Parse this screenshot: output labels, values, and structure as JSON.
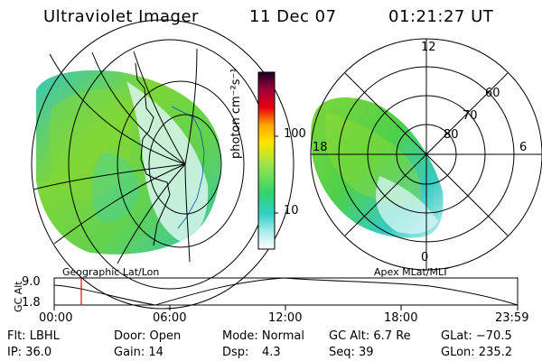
{
  "header": {
    "instrument": "Ultraviolet Imager",
    "date": "11 Dec 07",
    "time": "01:21:27 UT"
  },
  "geo_panel": {
    "label": "Geographic Lat/Lon"
  },
  "apex_panel": {
    "label": "Apex MLat/MLT",
    "mlt_labels": [
      "12",
      "18",
      "6",
      "0"
    ],
    "lat_labels": [
      "60",
      "70",
      "80"
    ]
  },
  "colorbar": {
    "unit_label": "photon cm⁻²s⁻¹",
    "ticks": [
      "100",
      "10"
    ]
  },
  "altitude_plot": {
    "ylabel": "GC Alt",
    "y_ticks": [
      "9.0",
      "1.8"
    ],
    "x_ticks": [
      "00:00",
      "06:00",
      "12:00",
      "18:00",
      "23:59"
    ]
  },
  "status": {
    "flt": "Flt: LBHL",
    "ip": "IP: 36.0",
    "door": "Door: Open",
    "gain": "Gain: 14",
    "mode": "Mode: Normal",
    "dsp_label": "Dsp:",
    "dsp_value": "4.3",
    "gc_alt": "GC Alt: 6.7 Re",
    "seq": "Seq: 39",
    "glat": "GLat: −70.5",
    "glon": "GLon: 235.2"
  }
}
